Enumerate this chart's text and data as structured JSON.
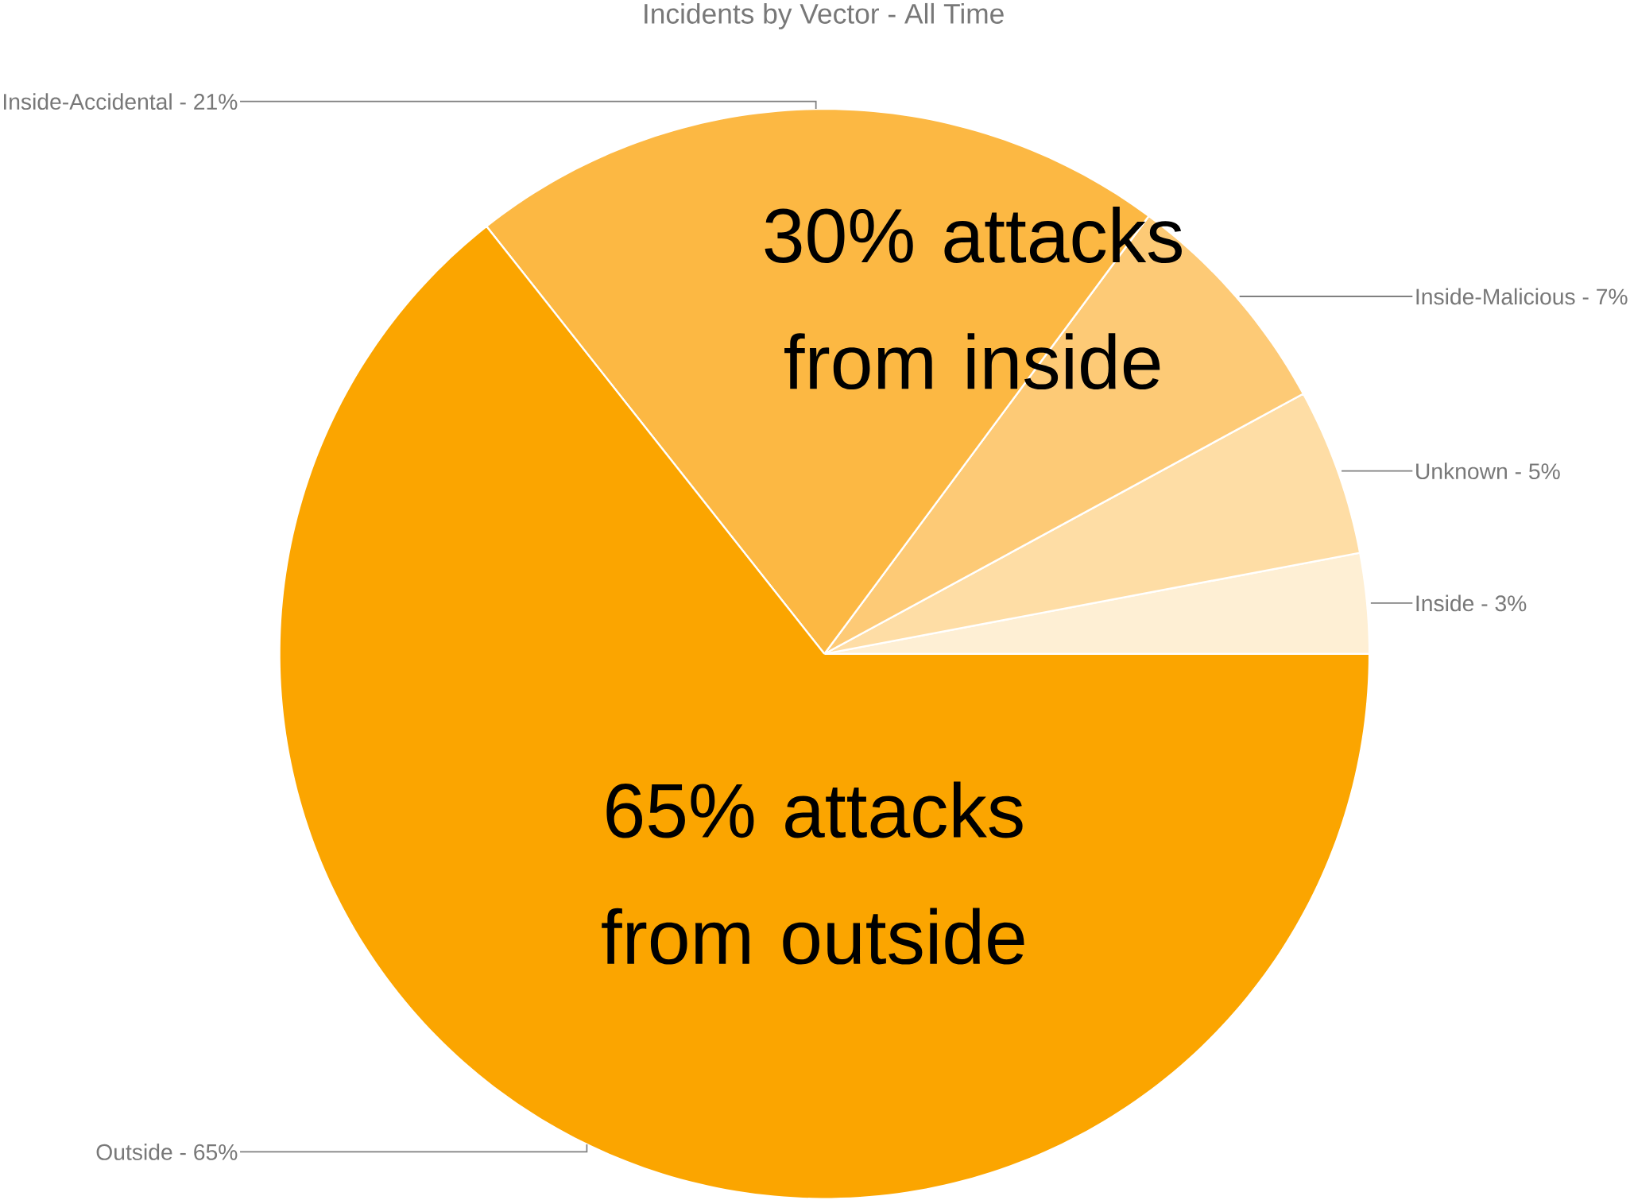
{
  "chart_data": {
    "type": "pie",
    "title": "Incidents by Vector - All Time",
    "categories": [
      "Inside - 3%",
      "Unknown - 5%",
      "Inside-Malicious - 7%",
      "Inside-Accidental - 21%",
      "Outside - 65%"
    ],
    "values": [
      3,
      5,
      7,
      21,
      65
    ],
    "colors": [
      "#feefd4",
      "#fedda5",
      "#fdca76",
      "#fcb843",
      "#fba500"
    ],
    "annotations": [
      "30% attacks from inside",
      "65% attacks from outside"
    ]
  }
}
